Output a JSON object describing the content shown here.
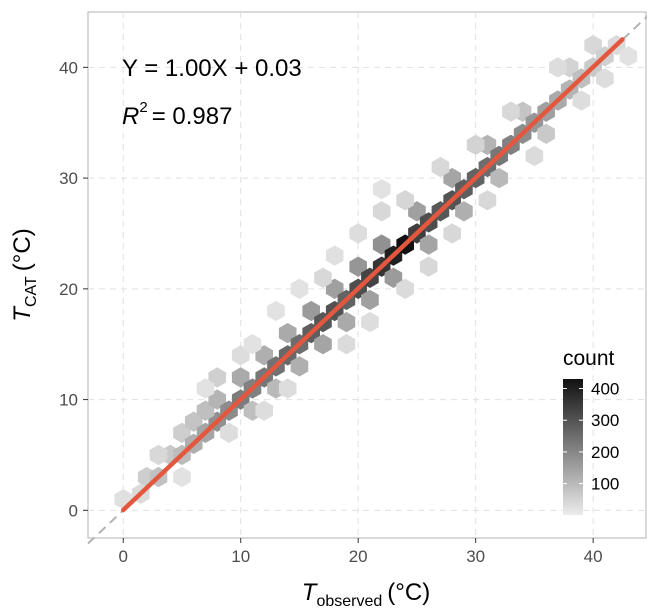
{
  "chart_data": {
    "type": "heatmap",
    "subtype": "hexbin",
    "xlabel": {
      "main": "T",
      "sub": "observed",
      "unit": "(°C)"
    },
    "ylabel": {
      "main": "T",
      "sub": "CAT",
      "unit": "(°C)"
    },
    "xlim": [
      -3,
      44.5
    ],
    "ylim": [
      -2.5,
      45
    ],
    "x_ticks": [
      0,
      10,
      20,
      30,
      40
    ],
    "y_ticks": [
      0,
      10,
      20,
      30,
      40
    ],
    "grid": true,
    "grid_style": "dashed",
    "annotations": {
      "equation": "Y = 1.00X + 0.03",
      "r2_label": "R",
      "r2_exp": "2",
      "r2_value": "= 0.987"
    },
    "regression_line": {
      "slope": 1.0,
      "intercept": 0.03,
      "x_range": [
        0,
        42.5
      ],
      "color": "#e4573f"
    },
    "identity_line": {
      "slope": 1,
      "intercept": 0,
      "style": "dashed",
      "color": "#b3b3b3"
    },
    "legend": {
      "title": "count",
      "ticks": [
        100,
        200,
        300,
        400
      ],
      "range": [
        1,
        430
      ],
      "low_color": "#ececec",
      "high_color": "#111111",
      "placement": "bottom-right"
    },
    "hex_bin_width": 1.5,
    "bins": [
      {
        "x": 0,
        "y": 1,
        "count": 25
      },
      {
        "x": 1.5,
        "y": 1.5,
        "count": 35
      },
      {
        "x": 2,
        "y": 3,
        "count": 60
      },
      {
        "x": 3,
        "y": 3,
        "count": 85
      },
      {
        "x": 4,
        "y": 5,
        "count": 70
      },
      {
        "x": 3,
        "y": 5,
        "count": 40
      },
      {
        "x": 5,
        "y": 5,
        "count": 95
      },
      {
        "x": 5,
        "y": 7,
        "count": 60
      },
      {
        "x": 6,
        "y": 6,
        "count": 120
      },
      {
        "x": 6,
        "y": 8,
        "count": 80
      },
      {
        "x": 7,
        "y": 7,
        "count": 140
      },
      {
        "x": 8,
        "y": 8,
        "count": 180
      },
      {
        "x": 7,
        "y": 9,
        "count": 90
      },
      {
        "x": 8,
        "y": 10,
        "count": 110
      },
      {
        "x": 9,
        "y": 9,
        "count": 190
      },
      {
        "x": 8,
        "y": 12,
        "count": 55
      },
      {
        "x": 10,
        "y": 10,
        "count": 220
      },
      {
        "x": 10,
        "y": 12,
        "count": 130
      },
      {
        "x": 11,
        "y": 11,
        "count": 210
      },
      {
        "x": 11,
        "y": 9,
        "count": 90
      },
      {
        "x": 12,
        "y": 12,
        "count": 230
      },
      {
        "x": 12,
        "y": 14,
        "count": 120
      },
      {
        "x": 13,
        "y": 13,
        "count": 240
      },
      {
        "x": 13,
        "y": 11,
        "count": 100
      },
      {
        "x": 14,
        "y": 14,
        "count": 260
      },
      {
        "x": 14,
        "y": 16,
        "count": 130
      },
      {
        "x": 15,
        "y": 15,
        "count": 250
      },
      {
        "x": 15,
        "y": 13,
        "count": 120
      },
      {
        "x": 16,
        "y": 16,
        "count": 280
      },
      {
        "x": 16,
        "y": 18,
        "count": 160
      },
      {
        "x": 17,
        "y": 17,
        "count": 290
      },
      {
        "x": 17,
        "y": 15,
        "count": 140
      },
      {
        "x": 18,
        "y": 18,
        "count": 300
      },
      {
        "x": 18,
        "y": 20,
        "count": 150
      },
      {
        "x": 19,
        "y": 19,
        "count": 270
      },
      {
        "x": 19,
        "y": 17,
        "count": 130
      },
      {
        "x": 20,
        "y": 20,
        "count": 310
      },
      {
        "x": 20,
        "y": 22,
        "count": 170
      },
      {
        "x": 21,
        "y": 21,
        "count": 330
      },
      {
        "x": 21,
        "y": 19,
        "count": 150
      },
      {
        "x": 22,
        "y": 22,
        "count": 360
      },
      {
        "x": 22,
        "y": 24,
        "count": 180
      },
      {
        "x": 23,
        "y": 23,
        "count": 400
      },
      {
        "x": 24,
        "y": 24,
        "count": 430
      },
      {
        "x": 23,
        "y": 21,
        "count": 160
      },
      {
        "x": 25,
        "y": 25,
        "count": 340
      },
      {
        "x": 25,
        "y": 27,
        "count": 150
      },
      {
        "x": 26,
        "y": 26,
        "count": 310
      },
      {
        "x": 26,
        "y": 24,
        "count": 140
      },
      {
        "x": 27,
        "y": 27,
        "count": 290
      },
      {
        "x": 28,
        "y": 28,
        "count": 300
      },
      {
        "x": 28,
        "y": 30,
        "count": 140
      },
      {
        "x": 29,
        "y": 29,
        "count": 280
      },
      {
        "x": 29,
        "y": 27,
        "count": 120
      },
      {
        "x": 30,
        "y": 30,
        "count": 270
      },
      {
        "x": 31,
        "y": 31,
        "count": 250
      },
      {
        "x": 31,
        "y": 33,
        "count": 110
      },
      {
        "x": 32,
        "y": 32,
        "count": 230
      },
      {
        "x": 32,
        "y": 30,
        "count": 100
      },
      {
        "x": 33,
        "y": 33,
        "count": 210
      },
      {
        "x": 34,
        "y": 34,
        "count": 190
      },
      {
        "x": 34,
        "y": 36,
        "count": 80
      },
      {
        "x": 35,
        "y": 35,
        "count": 170
      },
      {
        "x": 36,
        "y": 36,
        "count": 150
      },
      {
        "x": 36,
        "y": 34,
        "count": 70
      },
      {
        "x": 37,
        "y": 37,
        "count": 130
      },
      {
        "x": 38,
        "y": 38,
        "count": 110
      },
      {
        "x": 38,
        "y": 40,
        "count": 50
      },
      {
        "x": 39,
        "y": 39,
        "count": 90
      },
      {
        "x": 40,
        "y": 40,
        "count": 70
      },
      {
        "x": 40,
        "y": 42,
        "count": 40
      },
      {
        "x": 41,
        "y": 41,
        "count": 55
      },
      {
        "x": 42,
        "y": 42,
        "count": 35
      },
      {
        "x": 41,
        "y": 39,
        "count": 30
      },
      {
        "x": 43,
        "y": 41,
        "count": 20
      },
      {
        "x": 22,
        "y": 27,
        "count": 40
      },
      {
        "x": 20,
        "y": 25,
        "count": 30
      },
      {
        "x": 18,
        "y": 23,
        "count": 25
      },
      {
        "x": 24,
        "y": 28,
        "count": 45
      },
      {
        "x": 26,
        "y": 22,
        "count": 40
      },
      {
        "x": 24,
        "y": 20,
        "count": 35
      },
      {
        "x": 15,
        "y": 20,
        "count": 20
      },
      {
        "x": 13,
        "y": 18,
        "count": 20
      },
      {
        "x": 28,
        "y": 25,
        "count": 40
      },
      {
        "x": 30,
        "y": 33,
        "count": 50
      },
      {
        "x": 33,
        "y": 36,
        "count": 40
      },
      {
        "x": 35,
        "y": 32,
        "count": 35
      },
      {
        "x": 10,
        "y": 14,
        "count": 30
      },
      {
        "x": 12,
        "y": 9,
        "count": 30
      },
      {
        "x": 7,
        "y": 11,
        "count": 20
      },
      {
        "x": 9,
        "y": 7,
        "count": 30
      },
      {
        "x": 5,
        "y": 3,
        "count": 20
      },
      {
        "x": 22,
        "y": 29,
        "count": 20
      },
      {
        "x": 27,
        "y": 31,
        "count": 40
      },
      {
        "x": 31,
        "y": 28,
        "count": 40
      },
      {
        "x": 37,
        "y": 40,
        "count": 30
      },
      {
        "x": 39,
        "y": 37,
        "count": 30
      },
      {
        "x": 17,
        "y": 21,
        "count": 40
      },
      {
        "x": 19,
        "y": 15,
        "count": 35
      },
      {
        "x": 21,
        "y": 17,
        "count": 30
      },
      {
        "x": 11,
        "y": 15,
        "count": 20
      },
      {
        "x": 14,
        "y": 11,
        "count": 30
      }
    ]
  }
}
